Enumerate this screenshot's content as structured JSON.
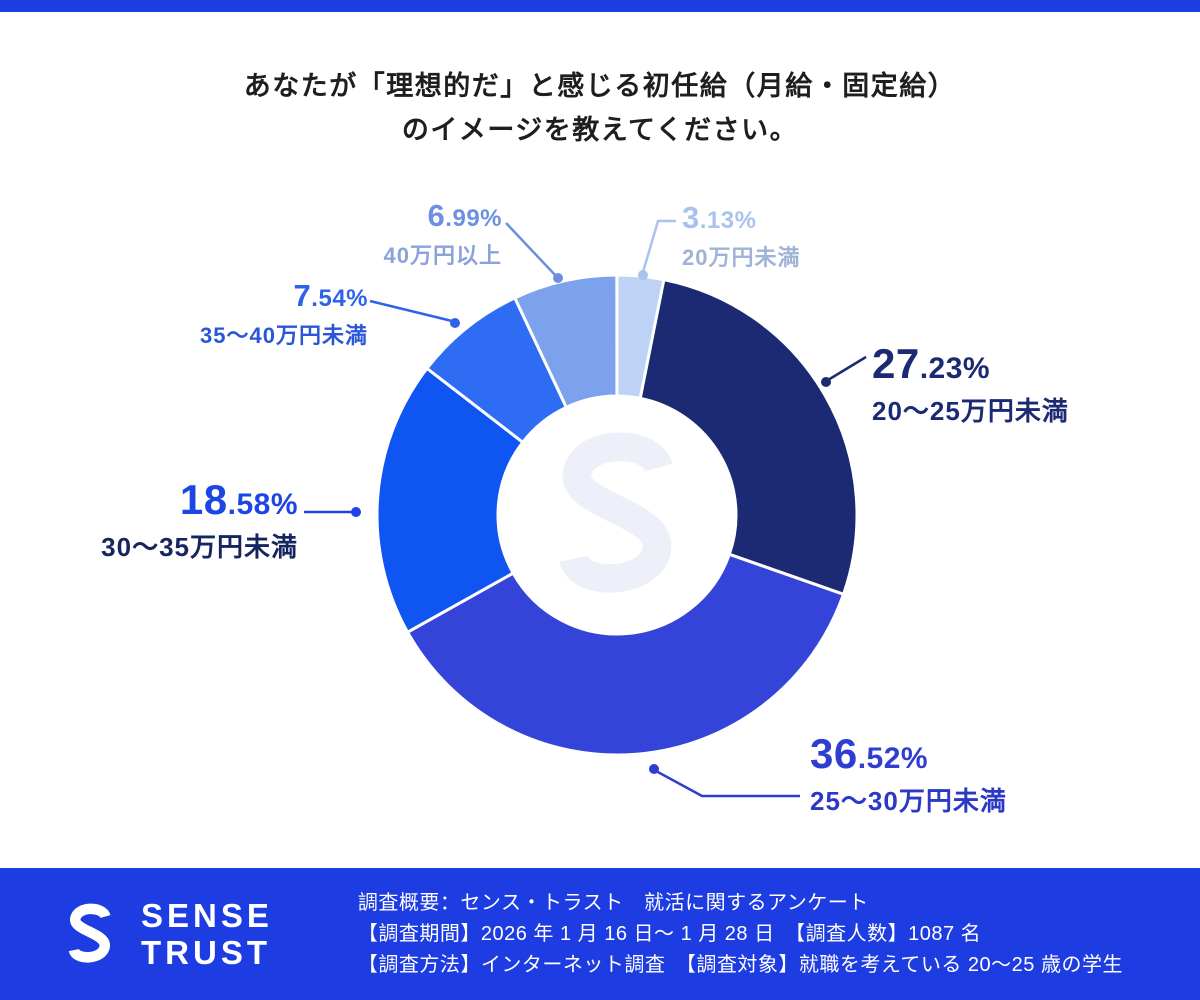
{
  "colors": {
    "accent": "#1d3ce2",
    "background": "#ffffff",
    "title_text": "#1e1e1e",
    "footer_text": "#ffffff"
  },
  "header": {
    "title_line1": "あなたが「理想的だ」と感じる初任給（月給・固定給）",
    "title_line2": "のイメージを教えてください。"
  },
  "chart_data": {
    "type": "pie",
    "donut": true,
    "title": "あなたが「理想的だ」と感じる初任給（月給・固定給）のイメージを教えてください。",
    "unit": "%",
    "start_angle_deg": -90,
    "direction": "clockwise",
    "legend_position": "callouts",
    "categories": [
      "20万円未満",
      "20～25万円未満",
      "25～30万円未満",
      "30～35万円未満",
      "35～40万円未満",
      "40万円以上"
    ],
    "values": [
      3.13,
      27.23,
      36.52,
      18.58,
      7.54,
      6.99
    ],
    "slices": [
      {
        "label": "20万円未満",
        "value": 3.13,
        "pct_int": "3",
        "pct_frac": ".13%",
        "color": "#bdd2f4",
        "text_color": "#a9c3ec",
        "label_color": "#9db3d8"
      },
      {
        "label": "20～25万円未満",
        "value": 27.23,
        "pct_int": "27",
        "pct_frac": ".23%",
        "color": "#1b2a72",
        "text_color": "#1b2a72",
        "label_color": "#1b2a72"
      },
      {
        "label": "25～30万円未満",
        "value": 36.52,
        "pct_int": "36",
        "pct_frac": ".52%",
        "color": "#3444d9",
        "text_color": "#2f3dd3",
        "label_color": "#2c38c6"
      },
      {
        "label": "30～35万円未満",
        "value": 18.58,
        "pct_int": "18",
        "pct_frac": ".58%",
        "color": "#0f55f1",
        "text_color": "#1d45e6",
        "label_color": "#15265e"
      },
      {
        "label": "35～40万円未満",
        "value": 7.54,
        "pct_int": "7",
        "pct_frac": ".54%",
        "color": "#2e6cf3",
        "text_color": "#2e62ea",
        "label_color": "#2a56d8"
      },
      {
        "label": "40万円以上",
        "value": 6.99,
        "pct_int": "6",
        "pct_frac": ".99%",
        "color": "#7ca2ee",
        "text_color": "#6b90e2",
        "label_color": "#8aa3da"
      }
    ]
  },
  "footer": {
    "logo_line1": "SENSE",
    "logo_line2": "TRUST",
    "line1": "調査概要：センス・トラスト　就活に関するアンケート",
    "line2": "【調査期間】2026 年 1 月 16 日～ 1 月 28 日　【調査人数】1087 名",
    "line3": "【調査方法】インターネット調査　【調査対象】就職を考えている 20～25 歳の学生"
  }
}
